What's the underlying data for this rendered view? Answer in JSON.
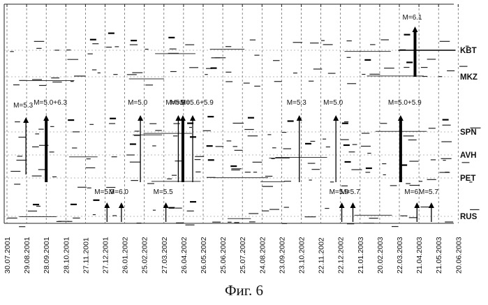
{
  "chart_data": {
    "type": "timeline",
    "dates": [
      "30.07.2001",
      "29.08.2001",
      "28.09.2001",
      "28.10.2001",
      "27.11.2001",
      "27.12.2001",
      "26.01.2002",
      "25.02.2002",
      "27.03.2002",
      "26.04.2002",
      "26.05.2002",
      "25.06.2002",
      "25.07.2002",
      "24.08.2002",
      "23.09.2002",
      "23.10.2002",
      "22.11.2002",
      "22.12.2002",
      "21.01.2003",
      "20.02.2003",
      "22.03.2003",
      "21.04.2003",
      "21.05.2003",
      "20.06.2003"
    ],
    "stations": [
      "KBT",
      "MKZ",
      "SPN",
      "AVH",
      "PET",
      "RUS"
    ],
    "events": [
      {
        "station": "SPN",
        "date": "28.09.2001",
        "label": "M=5.0+6.3",
        "thick": true
      },
      {
        "station": "SPN",
        "date": "28.08.2001",
        "label": "M=5.3",
        "thick": false
      },
      {
        "station": "SPN",
        "date": "19.02.2002",
        "label": "M=5.0",
        "thick": false
      },
      {
        "station": "SPN",
        "date": "18.04.2002",
        "label": "M=5.9",
        "thick": false
      },
      {
        "station": "SPN",
        "date": "25.04.2002",
        "label": "M=5.0",
        "thick": true
      },
      {
        "station": "SPN",
        "date": "10.05.2002",
        "label": "M=5.6+5.9",
        "thick": false
      },
      {
        "station": "SPN",
        "date": "20.10.2002",
        "label": "M=5.3",
        "thick": false
      },
      {
        "station": "SPN",
        "date": "15.12.2002",
        "label": "M=5.0",
        "thick": false
      },
      {
        "station": "SPN",
        "date": "24.03.2003",
        "label": "M=5.0+5.9",
        "thick": true
      },
      {
        "station": "KBT",
        "date": "15.04.2003",
        "label": "M=6.1",
        "thick": true
      },
      {
        "station": "RUS",
        "date": "30.12.2001",
        "label": "M=5.9",
        "thick": false
      },
      {
        "station": "RUS",
        "date": "21.01.2002",
        "label": "M=6.0",
        "thick": false
      },
      {
        "station": "RUS",
        "date": "30.03.2002",
        "label": "M=5.5",
        "thick": false
      },
      {
        "station": "RUS",
        "date": "24.12.2002",
        "label": "M=5.9",
        "thick": false
      },
      {
        "station": "RUS",
        "date": "10.01.2003",
        "label": "M=5.7",
        "thick": false
      },
      {
        "station": "RUS",
        "date": "18.04.2003",
        "label": "M=6",
        "thick": false
      },
      {
        "station": "RUS",
        "date": "10.05.2003",
        "label": "M=5.7",
        "thick": false
      }
    ]
  },
  "caption": "Фиг. 6"
}
